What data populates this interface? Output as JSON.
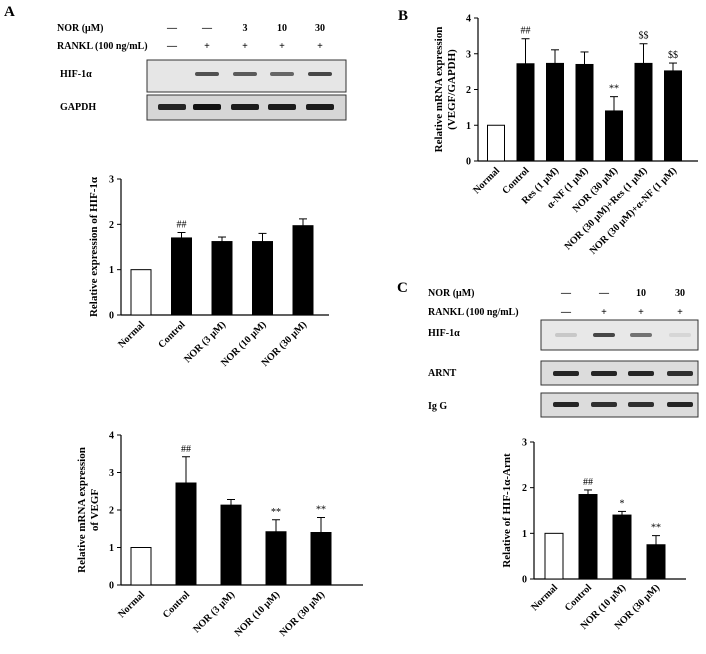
{
  "panels": {
    "A": {
      "letter": "A"
    },
    "B": {
      "letter": "B"
    },
    "C": {
      "letter": "C"
    }
  },
  "western_A": {
    "row_labels": [
      "NOR (μM)",
      "RANKL (100 ng/mL)"
    ],
    "nor_values": [
      "—",
      "—",
      "3",
      "10",
      "30"
    ],
    "rankl_values": [
      "—",
      "+",
      "+",
      "+",
      "+"
    ],
    "blots": [
      "HIF-1α",
      "GAPDH"
    ]
  },
  "western_C": {
    "row_labels": [
      "NOR (μM)",
      "RANKL (100 ng/mL)"
    ],
    "nor_values": [
      "—",
      "—",
      "10",
      "30"
    ],
    "rankl_values": [
      "—",
      "+",
      "+",
      "+"
    ],
    "blots": [
      "HIF-1α",
      "ARNT",
      "Ig G"
    ]
  },
  "chart_data": [
    {
      "id": "A1",
      "type": "bar",
      "ylabel": "Relative expression of HIF-1α",
      "ylim": [
        0,
        3
      ],
      "yticks": [
        0,
        1,
        2,
        3
      ],
      "categories": [
        "Normal",
        "Control",
        "NOR (3 μM)",
        "NOR (10 μM)",
        "NOR (30 μM)"
      ],
      "values": [
        1.0,
        1.7,
        1.62,
        1.62,
        1.97
      ],
      "errors": [
        0,
        0.12,
        0.1,
        0.18,
        0.15
      ],
      "fill": [
        "white",
        "black",
        "black",
        "black",
        "black"
      ],
      "annotations": [
        "",
        "##",
        "",
        "",
        ""
      ]
    },
    {
      "id": "A2",
      "type": "bar",
      "ylabel": "Relative mRNA expression of VEGF",
      "ylim": [
        0,
        4
      ],
      "yticks": [
        0,
        1,
        2,
        3,
        4
      ],
      "categories": [
        "Normal",
        "Control",
        "NOR (3 μM)",
        "NOR (10 μM)",
        "NOR (30 μM)"
      ],
      "values": [
        1.0,
        2.72,
        2.13,
        1.42,
        1.4
      ],
      "errors": [
        0,
        0.7,
        0.15,
        0.32,
        0.4
      ],
      "fill": [
        "white",
        "black",
        "black",
        "black",
        "black"
      ],
      "annotations": [
        "",
        "##",
        "",
        "**",
        "**"
      ]
    },
    {
      "id": "B",
      "type": "bar",
      "ylabel": "Relative mRNA expression (VEGF/GAPDH)",
      "ylim": [
        0,
        4
      ],
      "yticks": [
        0,
        1,
        2,
        3,
        4
      ],
      "categories": [
        "Normal",
        "Control",
        "Res (1 μM)",
        "α-NF (1 μM)",
        "NOR (30 μM)",
        "NOR (30 μM)+Res (1 μM)",
        "NOR (30 μM)+α-NF (1 μM)"
      ],
      "values": [
        1.0,
        2.72,
        2.73,
        2.7,
        1.4,
        2.73,
        2.52
      ],
      "errors": [
        0,
        0.7,
        0.38,
        0.35,
        0.4,
        0.55,
        0.22
      ],
      "fill": [
        "white",
        "black",
        "black",
        "black",
        "black",
        "black",
        "black"
      ],
      "annotations": [
        "",
        "##",
        "",
        "",
        "**",
        "$$",
        "$$"
      ]
    },
    {
      "id": "C",
      "type": "bar",
      "ylabel": "Relative of HIF-1α-Arnt",
      "ylim": [
        0,
        3
      ],
      "yticks": [
        0,
        1,
        2,
        3
      ],
      "categories": [
        "Normal",
        "Control",
        "NOR (10 μM)",
        "NOR (30 μM)"
      ],
      "values": [
        1.0,
        1.85,
        1.4,
        0.75
      ],
      "errors": [
        0,
        0.1,
        0.08,
        0.2
      ],
      "fill": [
        "white",
        "black",
        "black",
        "black"
      ],
      "annotations": [
        "",
        "##",
        "*",
        "**"
      ]
    }
  ]
}
